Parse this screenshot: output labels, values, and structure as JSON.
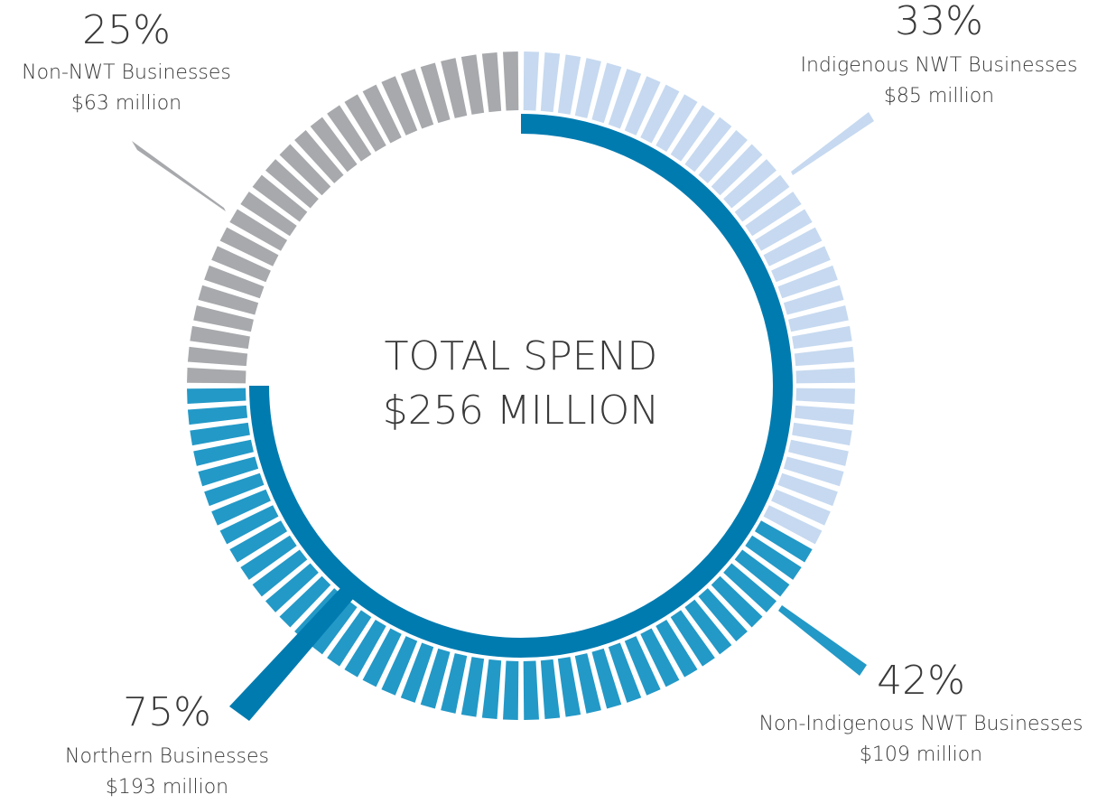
{
  "chart_data": {
    "type": "segmented-donut",
    "center_title": "TOTAL SPEND",
    "total": {
      "value": 256,
      "label": "$256 MILLION"
    },
    "slices": [
      {
        "name": "Indigenous NWT Businesses",
        "value": 33,
        "value_label": "33%",
        "amount": 85,
        "amount_label": "$85 million",
        "color": "#c6d9f0"
      },
      {
        "name": "Non-Indigenous NWT Businesses",
        "value": 42,
        "value_label": "42%",
        "amount": 109,
        "amount_label": "$109 million",
        "color": "#2399c7"
      },
      {
        "name": "Non-NWT Businesses",
        "value": 25,
        "value_label": "25%",
        "amount": 63,
        "amount_label": "$63 million",
        "color": "#a7a9ac"
      }
    ],
    "inner_arc": {
      "name": "Northern Businesses",
      "value": 75,
      "value_label": "75%",
      "amount": 193,
      "amount_label": "$193 million",
      "color": "#007bb0"
    }
  }
}
